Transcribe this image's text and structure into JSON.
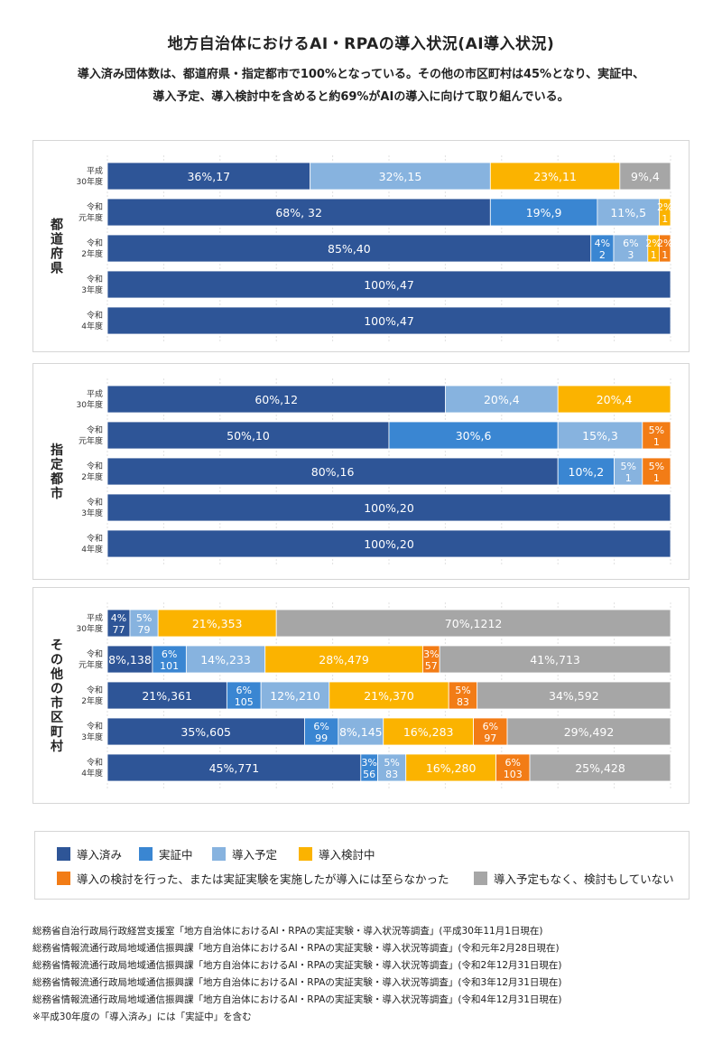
{
  "title": "地方自治体におけるAI・RPAの導入状況(AI導入状況)",
  "subtitle_lines": [
    "導入済み団体数は、都道府県・指定都市で100%となっている。その他の市区町村は45%となり、実証中、",
    "導入予定、導入検討中を含めると約69%がAIの導入に向けて取り組んでいる。"
  ],
  "colors": {
    "導入済み": "#2e5597",
    "実証中": "#3a86d2",
    "導入予定": "#87b3df",
    "導入検討中": "#fbb300",
    "検討・実証したが至らず": "#f27c16",
    "予定なし": "#a6a6a6"
  },
  "legend": [
    {
      "key": "導入済み",
      "label": "導入済み"
    },
    {
      "key": "実証中",
      "label": "実証中"
    },
    {
      "key": "導入予定",
      "label": "導入予定"
    },
    {
      "key": "導入検討中",
      "label": "導入検討中"
    },
    {
      "key": "検討・実証したが至らず",
      "label": "導入の検討を行った、または実証実験を実施したが導入には至らなかった"
    },
    {
      "key": "予定なし",
      "label": "導入予定もなく、検討もしていない"
    }
  ],
  "chart_data": [
    {
      "type": "bar",
      "orientation": "horizontal-stacked-100",
      "group_label": "都道府県",
      "rows": [
        {
          "label_lines": [
            "平成",
            "30年度"
          ],
          "segments": [
            {
              "key": "導入済み",
              "pct": 36,
              "count": 17,
              "label": "36%,17"
            },
            {
              "key": "導入予定",
              "pct": 32,
              "count": 15,
              "label": "32%,15"
            },
            {
              "key": "導入検討中",
              "pct": 23,
              "count": 11,
              "label": "23%,11"
            },
            {
              "key": "予定なし",
              "pct": 9,
              "count": 4,
              "label": "9%,4"
            }
          ]
        },
        {
          "label_lines": [
            "令和",
            "元年度"
          ],
          "segments": [
            {
              "key": "導入済み",
              "pct": 68,
              "count": 32,
              "label": "68%, 32"
            },
            {
              "key": "実証中",
              "pct": 19,
              "count": 9,
              "label": "19%,9"
            },
            {
              "key": "導入予定",
              "pct": 11,
              "count": 5,
              "label": "11%,5"
            },
            {
              "key": "導入検討中",
              "pct": 2,
              "count": 1,
              "label": "2%|1"
            }
          ]
        },
        {
          "label_lines": [
            "令和",
            "2年度"
          ],
          "segments": [
            {
              "key": "導入済み",
              "pct": 85,
              "count": 40,
              "label": "85%,40"
            },
            {
              "key": "実証中",
              "pct": 4,
              "count": 2,
              "label": "4%|2"
            },
            {
              "key": "導入予定",
              "pct": 6,
              "count": 3,
              "label": "6%|3"
            },
            {
              "key": "導入検討中",
              "pct": 2,
              "count": 1,
              "label": "2%|1"
            },
            {
              "key": "検討・実証したが至らず",
              "pct": 2,
              "count": 1,
              "label": "2%|1"
            }
          ]
        },
        {
          "label_lines": [
            "令和",
            "3年度"
          ],
          "segments": [
            {
              "key": "導入済み",
              "pct": 100,
              "count": 47,
              "label": "100%,47"
            }
          ]
        },
        {
          "label_lines": [
            "令和",
            "4年度"
          ],
          "segments": [
            {
              "key": "導入済み",
              "pct": 100,
              "count": 47,
              "label": "100%,47"
            }
          ]
        }
      ]
    },
    {
      "type": "bar",
      "orientation": "horizontal-stacked-100",
      "group_label": "指定都市",
      "rows": [
        {
          "label_lines": [
            "平成",
            "30年度"
          ],
          "segments": [
            {
              "key": "導入済み",
              "pct": 60,
              "count": 12,
              "label": "60%,12"
            },
            {
              "key": "導入予定",
              "pct": 20,
              "count": 4,
              "label": "20%,4"
            },
            {
              "key": "導入検討中",
              "pct": 20,
              "count": 4,
              "label": "20%,4"
            }
          ]
        },
        {
          "label_lines": [
            "令和",
            "元年度"
          ],
          "segments": [
            {
              "key": "導入済み",
              "pct": 50,
              "count": 10,
              "label": "50%,10"
            },
            {
              "key": "実証中",
              "pct": 30,
              "count": 6,
              "label": "30%,6"
            },
            {
              "key": "導入予定",
              "pct": 15,
              "count": 3,
              "label": "15%,3"
            },
            {
              "key": "検討・実証したが至らず",
              "pct": 5,
              "count": 1,
              "label": "5%|1"
            }
          ]
        },
        {
          "label_lines": [
            "令和",
            "2年度"
          ],
          "segments": [
            {
              "key": "導入済み",
              "pct": 80,
              "count": 16,
              "label": "80%,16"
            },
            {
              "key": "実証中",
              "pct": 10,
              "count": 2,
              "label": "10%,2"
            },
            {
              "key": "導入予定",
              "pct": 5,
              "count": 1,
              "label": "5%|1"
            },
            {
              "key": "検討・実証したが至らず",
              "pct": 5,
              "count": 1,
              "label": "5%|1"
            }
          ]
        },
        {
          "label_lines": [
            "令和",
            "3年度"
          ],
          "segments": [
            {
              "key": "導入済み",
              "pct": 100,
              "count": 20,
              "label": "100%,20"
            }
          ]
        },
        {
          "label_lines": [
            "令和",
            "4年度"
          ],
          "segments": [
            {
              "key": "導入済み",
              "pct": 100,
              "count": 20,
              "label": "100%,20"
            }
          ]
        }
      ]
    },
    {
      "type": "bar",
      "orientation": "horizontal-stacked-100",
      "group_label": "その他の市区町村",
      "rows": [
        {
          "label_lines": [
            "平成",
            "30年度"
          ],
          "segments": [
            {
              "key": "導入済み",
              "pct": 4,
              "count": 77,
              "label": "4%|77"
            },
            {
              "key": "導入予定",
              "pct": 5,
              "count": 79,
              "label": "5%|79"
            },
            {
              "key": "導入検討中",
              "pct": 21,
              "count": 353,
              "label": "21%,353"
            },
            {
              "key": "予定なし",
              "pct": 70,
              "count": 1212,
              "label": "70%,1212"
            }
          ]
        },
        {
          "label_lines": [
            "令和",
            "元年度"
          ],
          "segments": [
            {
              "key": "導入済み",
              "pct": 8,
              "count": 138,
              "label": "8%,138"
            },
            {
              "key": "実証中",
              "pct": 6,
              "count": 101,
              "label": "6%|101"
            },
            {
              "key": "導入予定",
              "pct": 14,
              "count": 233,
              "label": "14%,233"
            },
            {
              "key": "導入検討中",
              "pct": 28,
              "count": 479,
              "label": "28%,479"
            },
            {
              "key": "検討・実証したが至らず",
              "pct": 3,
              "count": 57,
              "label": "3%|57"
            },
            {
              "key": "予定なし",
              "pct": 41,
              "count": 713,
              "label": "41%,713"
            }
          ]
        },
        {
          "label_lines": [
            "令和",
            "2年度"
          ],
          "segments": [
            {
              "key": "導入済み",
              "pct": 21,
              "count": 361,
              "label": "21%,361"
            },
            {
              "key": "実証中",
              "pct": 6,
              "count": 105,
              "label": "6%|105"
            },
            {
              "key": "導入予定",
              "pct": 12,
              "count": 210,
              "label": "12%,210"
            },
            {
              "key": "導入検討中",
              "pct": 21,
              "count": 370,
              "label": "21%,370"
            },
            {
              "key": "検討・実証したが至らず",
              "pct": 5,
              "count": 83,
              "label": "5%|83"
            },
            {
              "key": "予定なし",
              "pct": 34,
              "count": 592,
              "label": "34%,592"
            }
          ]
        },
        {
          "label_lines": [
            "令和",
            "3年度"
          ],
          "segments": [
            {
              "key": "導入済み",
              "pct": 35,
              "count": 605,
              "label": "35%,605"
            },
            {
              "key": "実証中",
              "pct": 6,
              "count": 99,
              "label": "6%|99"
            },
            {
              "key": "導入予定",
              "pct": 8,
              "count": 145,
              "label": "8%,145"
            },
            {
              "key": "導入検討中",
              "pct": 16,
              "count": 283,
              "label": "16%,283"
            },
            {
              "key": "検討・実証したが至らず",
              "pct": 6,
              "count": 97,
              "label": "6%|97"
            },
            {
              "key": "予定なし",
              "pct": 29,
              "count": 492,
              "label": "29%,492"
            }
          ]
        },
        {
          "label_lines": [
            "令和",
            "4年度"
          ],
          "segments": [
            {
              "key": "導入済み",
              "pct": 45,
              "count": 771,
              "label": "45%,771"
            },
            {
              "key": "実証中",
              "pct": 3,
              "count": 56,
              "label": "3%|56"
            },
            {
              "key": "導入予定",
              "pct": 5,
              "count": 83,
              "label": "5%|83"
            },
            {
              "key": "導入検討中",
              "pct": 16,
              "count": 280,
              "label": "16%,280"
            },
            {
              "key": "検討・実証したが至らず",
              "pct": 6,
              "count": 103,
              "label": "6%|103"
            },
            {
              "key": "予定なし",
              "pct": 25,
              "count": 428,
              "label": "25%,428"
            }
          ]
        }
      ]
    }
  ],
  "notes": [
    "総務省自治行政局行政経営支援室「地方自治体におけるAI・RPAの実証実験・導入状況等調査」(平成30年11月1日現在)",
    "総務省情報流通行政局地域通信振興課「地方自治体におけるAI・RPAの実証実験・導入状況等調査」(令和元年2月28日現在)",
    "総務省情報流通行政局地域通信振興課「地方自治体におけるAI・RPAの実証実験・導入状況等調査」(令和2年12月31日現在)",
    "総務省情報流通行政局地域通信振興課「地方自治体におけるAI・RPAの実証実験・導入状況等調査」(令和3年12月31日現在)",
    "総務省情報流通行政局地域通信振興課「地方自治体におけるAI・RPAの実証実験・導入状況等調査」(令和4年12月31日現在)",
    "※平成30年度の「導入済み」には「実証中」を含む"
  ]
}
